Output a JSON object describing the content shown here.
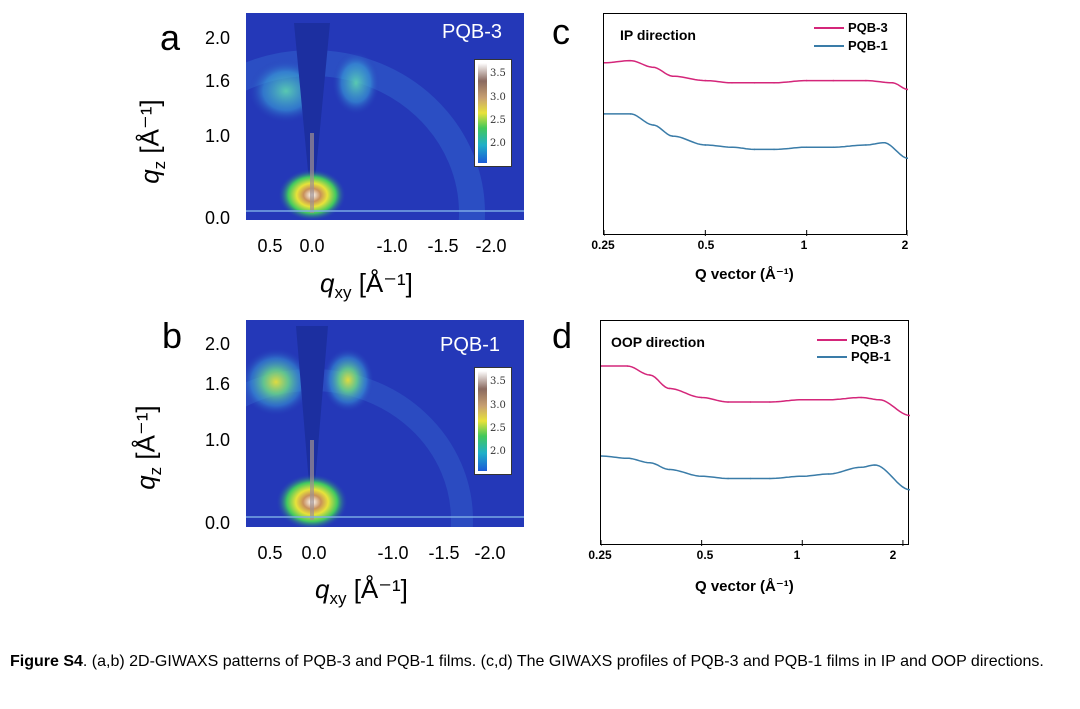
{
  "panels": {
    "a": {
      "letter": "a",
      "sample_label": "PQB-3",
      "yticks": [
        "2.0",
        "1.6",
        "1.0",
        "0.0"
      ],
      "xticks": [
        "0.5",
        "0.0",
        "-1.0",
        "-1.5",
        "-2.0"
      ],
      "cbar_ticks": [
        "3.5",
        "3.0",
        "2.5",
        "2.0"
      ],
      "ylabel": "q",
      "ylabel_sub": "z",
      "ylabel_unit": "[Å⁻¹]",
      "xlabel": "q",
      "xlabel_sub": "xy",
      "xlabel_unit": "[Å⁻¹]"
    },
    "b": {
      "letter": "b",
      "sample_label": "PQB-1",
      "yticks": [
        "2.0",
        "1.6",
        "1.0",
        "0.0"
      ],
      "xticks": [
        "0.5",
        "0.0",
        "-1.0",
        "-1.5",
        "-2.0"
      ],
      "cbar_ticks": [
        "3.5",
        "3.0",
        "2.5",
        "2.0"
      ],
      "ylabel": "q",
      "ylabel_sub": "z",
      "ylabel_unit": "[Å⁻¹]",
      "xlabel": "q",
      "xlabel_sub": "xy",
      "xlabel_unit": "[Å⁻¹]"
    },
    "c": {
      "letter": "c",
      "title": "IP direction",
      "legend": [
        "PQB-3",
        "PQB-1"
      ],
      "xticks": [
        "0.25",
        "0.5",
        "1",
        "2"
      ],
      "xlabel": "Q vector (Å⁻¹)"
    },
    "d": {
      "letter": "d",
      "title": "OOP direction",
      "legend": [
        "PQB-3",
        "PQB-1"
      ],
      "xticks": [
        "0.25",
        "0.5",
        "1",
        "2"
      ],
      "xlabel": "Q vector (Å⁻¹)"
    }
  },
  "colors": {
    "pqb3": "#d4267a",
    "pqb1": "#3a7ca8",
    "heat_bg": "#2438b8"
  },
  "chart_data": [
    {
      "type": "line",
      "title": "IP direction",
      "xlabel": "Q vector (Å⁻¹)",
      "xscale": "log",
      "xlim": [
        0.25,
        2.0
      ],
      "series": [
        {
          "name": "PQB-3",
          "x": [
            0.25,
            0.3,
            0.35,
            0.4,
            0.5,
            0.6,
            0.7,
            0.8,
            1.0,
            1.2,
            1.5,
            1.8,
            2.0
          ],
          "values": [
            0.78,
            0.79,
            0.76,
            0.72,
            0.7,
            0.69,
            0.69,
            0.69,
            0.7,
            0.7,
            0.7,
            0.69,
            0.66
          ]
        },
        {
          "name": "PQB-1",
          "x": [
            0.25,
            0.3,
            0.35,
            0.4,
            0.5,
            0.6,
            0.7,
            0.8,
            1.0,
            1.2,
            1.5,
            1.7,
            2.0
          ],
          "values": [
            0.55,
            0.55,
            0.5,
            0.45,
            0.41,
            0.4,
            0.39,
            0.39,
            0.4,
            0.4,
            0.41,
            0.42,
            0.35
          ]
        }
      ]
    },
    {
      "type": "line",
      "title": "OOP direction",
      "xlabel": "Q vector (Å⁻¹)",
      "xscale": "log",
      "xlim": [
        0.25,
        2.1
      ],
      "series": [
        {
          "name": "PQB-3",
          "x": [
            0.25,
            0.3,
            0.35,
            0.4,
            0.5,
            0.6,
            0.7,
            0.8,
            1.0,
            1.2,
            1.5,
            1.7,
            2.1
          ],
          "values": [
            0.8,
            0.8,
            0.76,
            0.7,
            0.66,
            0.64,
            0.64,
            0.64,
            0.65,
            0.65,
            0.66,
            0.65,
            0.58
          ]
        },
        {
          "name": "PQB-1",
          "x": [
            0.25,
            0.3,
            0.35,
            0.4,
            0.5,
            0.6,
            0.7,
            0.8,
            1.0,
            1.2,
            1.5,
            1.65,
            2.1
          ],
          "values": [
            0.4,
            0.39,
            0.37,
            0.34,
            0.31,
            0.3,
            0.3,
            0.3,
            0.31,
            0.32,
            0.35,
            0.36,
            0.25
          ]
        }
      ]
    }
  ],
  "caption": {
    "label": "Figure S4",
    "text": ". (a,b) 2D-GIWAXS patterns of PQB-3 and PQB-1 films. (c,d) The GIWAXS profiles of PQB-3 and PQB-1 films in IP and OOP directions."
  }
}
